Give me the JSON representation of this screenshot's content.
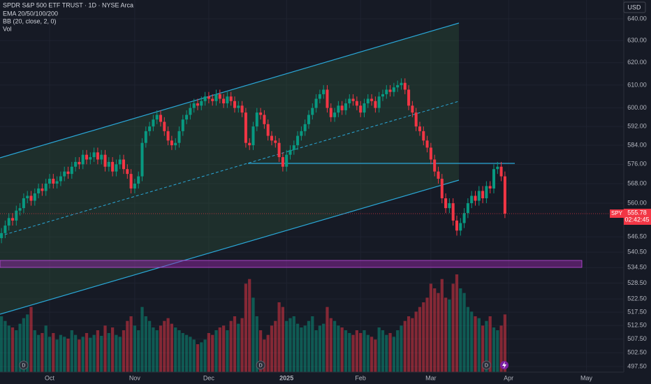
{
  "chart_data": {
    "type": "candlestick",
    "title": "SPDR S&P 500 ETF TRUST · 1D · NYSE Arca",
    "indicators": [
      "EMA 20/50/100/200",
      "BB (20, close, 2, 0)",
      "Vol"
    ],
    "currency": "USD",
    "log_scale": true,
    "grid": true,
    "up_color": "#089981",
    "down_color": "#f23645",
    "xlim": [
      -0.4,
      168.1
    ],
    "ylim": [
      495.5,
      648.8
    ],
    "volume_lim": [
      0,
      150
    ],
    "xticks": [
      {
        "value": 13,
        "label": "Oct"
      },
      {
        "value": 36,
        "label": "Nov"
      },
      {
        "value": 56,
        "label": "Dec"
      },
      {
        "value": 77,
        "label": "2025"
      },
      {
        "value": 97,
        "label": "Feb"
      },
      {
        "value": 116,
        "label": "Mar"
      },
      {
        "value": 137,
        "label": "Apr"
      },
      {
        "value": 158,
        "label": "May"
      }
    ],
    "yticks": [
      {
        "value": 640,
        "label": "640.00"
      },
      {
        "value": 630,
        "label": "630.00"
      },
      {
        "value": 620,
        "label": "620.00"
      },
      {
        "value": 610,
        "label": "610.00"
      },
      {
        "value": 600,
        "label": "600.00"
      },
      {
        "value": 592,
        "label": "592.00"
      },
      {
        "value": 584,
        "label": "584.00"
      },
      {
        "value": 576,
        "label": "576.00"
      },
      {
        "value": 568,
        "label": "568.00"
      },
      {
        "value": 560,
        "label": "560.00"
      },
      {
        "value": 546.5,
        "label": "546.50"
      },
      {
        "value": 540.5,
        "label": "540.50"
      },
      {
        "value": 534.5,
        "label": "534.50"
      },
      {
        "value": 528.5,
        "label": "528.50"
      },
      {
        "value": 522.5,
        "label": "522.50"
      },
      {
        "value": 517.5,
        "label": "517.50"
      },
      {
        "value": 512.5,
        "label": "512.50"
      },
      {
        "value": 507.5,
        "label": "507.50"
      },
      {
        "value": 502.5,
        "label": "502.50"
      },
      {
        "value": 497.5,
        "label": "497.50"
      }
    ],
    "last_price": {
      "symbol": "SPY",
      "value": 555.78,
      "countdown": "02:42:45"
    },
    "events": [
      {
        "x": 6,
        "label": "D"
      },
      {
        "x": 70,
        "label": "D"
      },
      {
        "x": 131,
        "label": "D"
      }
    ],
    "open": [
      546,
      548,
      551,
      554,
      553,
      557,
      558,
      562,
      563,
      561,
      564,
      566,
      565,
      568,
      570,
      568,
      569,
      571,
      573,
      572,
      575,
      577,
      576,
      580,
      578,
      579,
      581,
      578,
      580,
      575,
      577,
      573,
      576,
      578,
      574,
      572,
      566,
      568,
      571,
      585,
      590,
      592,
      595,
      597,
      594,
      590,
      586,
      584,
      585,
      590,
      595,
      597,
      600,
      602,
      601,
      603,
      605,
      604,
      603,
      606,
      604,
      602,
      605,
      603,
      600,
      601,
      598,
      585,
      584,
      592,
      598,
      597,
      593,
      588,
      586,
      585,
      579,
      575,
      580,
      582,
      584,
      588,
      590,
      593,
      597,
      600,
      604,
      606,
      608,
      600,
      596,
      598,
      601,
      599,
      602,
      604,
      603,
      601,
      598,
      602,
      604,
      603,
      600,
      605,
      606,
      608,
      607,
      609,
      610,
      611,
      608,
      601,
      598,
      592,
      590,
      586,
      583,
      578,
      573,
      570,
      562,
      558,
      560,
      553,
      549,
      552,
      556,
      560,
      563,
      561,
      565,
      562,
      567,
      566,
      574,
      575,
      571
    ],
    "high": [
      550,
      553,
      556,
      556,
      559,
      560,
      564,
      565,
      565,
      566,
      568,
      568,
      570,
      572,
      572,
      571,
      573,
      575,
      575,
      577,
      579,
      579,
      582,
      582,
      581,
      583,
      583,
      582,
      582,
      579,
      579,
      578,
      580,
      580,
      576,
      574,
      570,
      573,
      587,
      592,
      594,
      597,
      599,
      599,
      596,
      592,
      588,
      587,
      592,
      597,
      599,
      602,
      604,
      604,
      605,
      607,
      607,
      606,
      608,
      608,
      606,
      607,
      607,
      605,
      603,
      603,
      600,
      587,
      594,
      600,
      600,
      599,
      595,
      590,
      588,
      587,
      581,
      582,
      584,
      586,
      590,
      592,
      595,
      599,
      602,
      606,
      608,
      610,
      610,
      602,
      600,
      603,
      603,
      604,
      606,
      606,
      605,
      603,
      604,
      606,
      606,
      605,
      607,
      608,
      610,
      610,
      611,
      612,
      613,
      613,
      610,
      603,
      600,
      594,
      592,
      588,
      585,
      580,
      575,
      572,
      564,
      562,
      562,
      555,
      554,
      558,
      562,
      565,
      565,
      567,
      567,
      569,
      569,
      576,
      577,
      577,
      573
    ],
    "low": [
      544,
      546,
      549,
      551,
      551,
      555,
      556,
      560,
      559,
      559,
      562,
      563,
      563,
      566,
      566,
      566,
      567,
      569,
      570,
      570,
      573,
      574,
      574,
      576,
      576,
      577,
      576,
      576,
      573,
      573,
      571,
      571,
      574,
      572,
      570,
      564,
      564,
      566,
      569,
      583,
      588,
      590,
      593,
      592,
      588,
      584,
      582,
      582,
      583,
      588,
      593,
      595,
      598,
      599,
      599,
      601,
      602,
      601,
      601,
      602,
      600,
      600,
      601,
      598,
      598,
      596,
      583,
      582,
      582,
      590,
      595,
      591,
      586,
      584,
      583,
      577,
      573,
      573,
      578,
      580,
      582,
      586,
      588,
      591,
      595,
      598,
      602,
      604,
      598,
      594,
      594,
      596,
      597,
      597,
      600,
      601,
      599,
      596,
      596,
      600,
      601,
      598,
      598,
      603,
      604,
      605,
      605,
      607,
      608,
      606,
      599,
      596,
      590,
      588,
      584,
      581,
      576,
      571,
      568,
      560,
      556,
      556,
      551,
      547,
      547,
      550,
      554,
      558,
      559,
      559,
      560,
      560,
      564,
      564,
      572,
      569,
      554
    ],
    "close": [
      548,
      551,
      554,
      553,
      557,
      558,
      562,
      563,
      561,
      564,
      566,
      565,
      568,
      570,
      568,
      569,
      571,
      573,
      572,
      575,
      577,
      576,
      580,
      578,
      579,
      581,
      578,
      580,
      575,
      577,
      573,
      576,
      578,
      574,
      572,
      566,
      568,
      571,
      585,
      590,
      592,
      595,
      597,
      594,
      590,
      586,
      584,
      585,
      590,
      595,
      597,
      600,
      602,
      601,
      603,
      605,
      604,
      603,
      606,
      604,
      602,
      605,
      603,
      600,
      601,
      598,
      585,
      584,
      592,
      598,
      597,
      593,
      588,
      586,
      585,
      579,
      575,
      580,
      582,
      584,
      588,
      590,
      593,
      597,
      600,
      604,
      606,
      608,
      600,
      596,
      598,
      601,
      599,
      602,
      604,
      603,
      601,
      598,
      602,
      604,
      603,
      600,
      605,
      606,
      608,
      607,
      609,
      610,
      611,
      608,
      601,
      598,
      592,
      590,
      586,
      583,
      578,
      573,
      570,
      562,
      558,
      560,
      553,
      549,
      552,
      556,
      560,
      563,
      561,
      565,
      562,
      567,
      566,
      574,
      575,
      571,
      555.78
    ],
    "volume": [
      60,
      55,
      50,
      48,
      45,
      52,
      58,
      62,
      70,
      45,
      40,
      42,
      50,
      38,
      42,
      35,
      40,
      38,
      36,
      45,
      40,
      35,
      38,
      42,
      37,
      40,
      45,
      39,
      50,
      42,
      48,
      40,
      38,
      45,
      55,
      60,
      50,
      45,
      70,
      60,
      55,
      48,
      45,
      50,
      55,
      58,
      52,
      48,
      45,
      42,
      40,
      38,
      35,
      30,
      32,
      35,
      42,
      40,
      45,
      48,
      50,
      45,
      55,
      60,
      52,
      58,
      95,
      100,
      80,
      60,
      45,
      35,
      40,
      50,
      55,
      75,
      70,
      55,
      58,
      60,
      52,
      48,
      50,
      55,
      60,
      45,
      50,
      52,
      70,
      58,
      55,
      50,
      48,
      45,
      42,
      40,
      45,
      42,
      45,
      40,
      38,
      35,
      48,
      45,
      40,
      42,
      38,
      45,
      50,
      55,
      60,
      58,
      65,
      70,
      75,
      80,
      95,
      90,
      85,
      100,
      80,
      78,
      95,
      105,
      90,
      85,
      70,
      65,
      60,
      58,
      50,
      55,
      60,
      48,
      45,
      50,
      62
    ]
  }
}
